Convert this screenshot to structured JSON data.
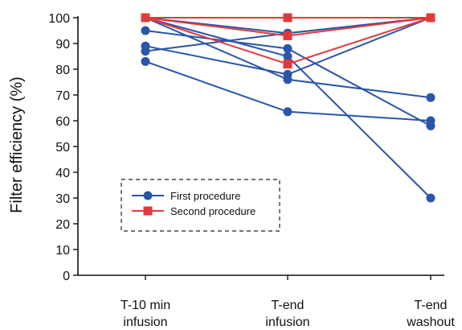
{
  "chart_data": {
    "type": "line",
    "title": "",
    "ylabel": "Filter efficiency (%)",
    "xlabel": "",
    "categories": [
      [
        "T-10 min",
        "infusion"
      ],
      [
        "T-end",
        "infusion"
      ],
      [
        "T-end",
        "washout"
      ]
    ],
    "ylim": [
      0,
      100
    ],
    "yticks": [
      0,
      10,
      20,
      30,
      40,
      50,
      60,
      70,
      80,
      90,
      100
    ],
    "grid": false,
    "legend_position": "lower-left",
    "groups": [
      {
        "name": "First procedure",
        "color": "#2a55a8",
        "marker": "circle",
        "lines": [
          [
            100,
            100,
            100
          ],
          [
            100,
            94,
            100
          ],
          [
            95,
            88,
            58
          ],
          [
            89,
            78,
            100
          ],
          [
            87,
            94,
            100
          ],
          [
            83,
            63.5,
            60
          ],
          [
            100,
            85,
            30
          ],
          [
            100,
            76,
            69
          ]
        ]
      },
      {
        "name": "Second procedure",
        "color": "#e23a3a",
        "marker": "square",
        "lines": [
          [
            100,
            100,
            100
          ],
          [
            100,
            93,
            100
          ],
          [
            100,
            82,
            100
          ]
        ]
      }
    ]
  }
}
